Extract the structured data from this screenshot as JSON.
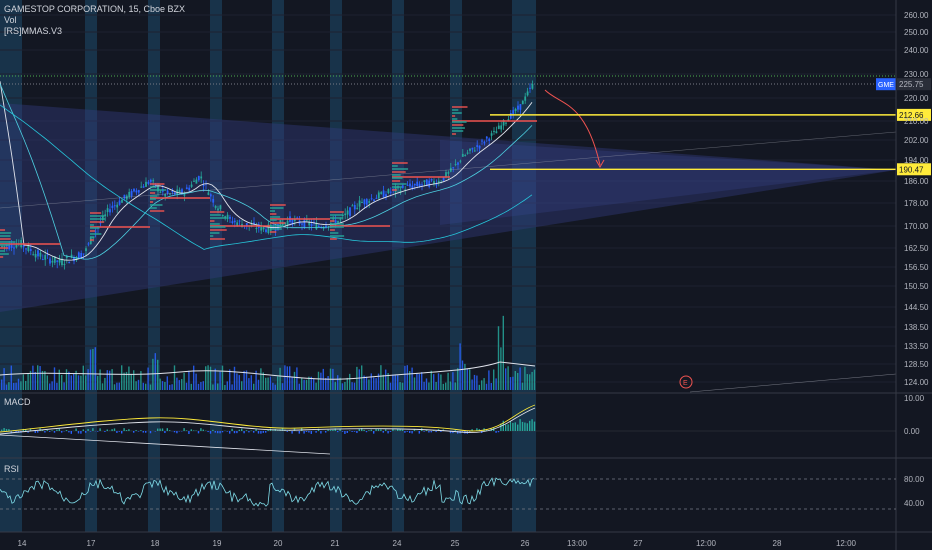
{
  "header": {
    "title": "GAMESTOP CORPORATION, 15, Cboe BZX",
    "volume_label": "Vol",
    "indicator_label": "[RS]MMAS.V3"
  },
  "panes": {
    "macd_label": "MACD",
    "rsi_label": "RSI"
  },
  "colors": {
    "background": "#131722",
    "up": "#26a69a",
    "down": "#2962ff",
    "session_band": "#1e4a6b",
    "wedge_fill": "#303a7a",
    "poc": "#ef5350",
    "level": "#ffeb3b",
    "white_line": "#e0e3eb",
    "grid": "#1e2230"
  },
  "chart_data": {
    "type": "candlestick",
    "symbol": "GME",
    "title": "GAMESTOP CORPORATION, 15, Cboe BZX",
    "last_price_label": "225.75",
    "price_axis_ticks": [
      "260.00",
      "250.00",
      "240.00",
      "230.00",
      "220.00",
      "210.00",
      "202.00",
      "194.00",
      "186.00",
      "178.00",
      "170.00",
      "162.50",
      "156.50",
      "150.50",
      "144.50",
      "138.50",
      "133.50",
      "128.50",
      "124.00"
    ],
    "macd_axis_ticks": [
      "10.00",
      "0.00"
    ],
    "rsi_axis_ticks": [
      "80.00",
      "40.00"
    ],
    "time_axis_ticks": [
      "14",
      "17",
      "18",
      "19",
      "20",
      "21",
      "24",
      "25",
      "26",
      "13:00",
      "27",
      "12:00",
      "28",
      "12:00"
    ],
    "levels": [
      {
        "label": "212.66",
        "value": 212.66
      },
      {
        "label": "190.47",
        "value": 190.47
      }
    ],
    "event_marker": "E",
    "approx_close_path": [
      {
        "x": "14",
        "close": 162
      },
      {
        "x": "17",
        "close": 164
      },
      {
        "x": "18",
        "close": 181
      },
      {
        "x": "19",
        "close": 176
      },
      {
        "x": "20",
        "close": 171
      },
      {
        "x": "21",
        "close": 172
      },
      {
        "x": "24",
        "close": 183
      },
      {
        "x": "25",
        "close": 188
      },
      {
        "x": "26",
        "close": 225.75
      }
    ],
    "grid": true
  }
}
